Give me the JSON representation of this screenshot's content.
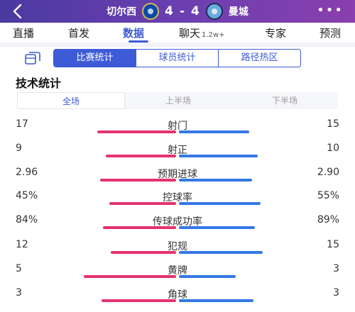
{
  "header": {
    "home_team": "切尔西",
    "away_team": "曼城",
    "home_score": "4",
    "score_sep": "-",
    "away_score": "4",
    "more": "•••"
  },
  "nav": {
    "items": [
      {
        "label": "直播",
        "sup": ""
      },
      {
        "label": "首发",
        "sup": ""
      },
      {
        "label": "数据",
        "sup": ""
      },
      {
        "label": "聊天",
        "sup": "1.2w+"
      },
      {
        "label": "专家",
        "sup": ""
      },
      {
        "label": "预测",
        "sup": ""
      }
    ],
    "active_index": 2
  },
  "sub_tabs": [
    "比赛统计",
    "球员统计",
    "路径热区"
  ],
  "section_title": "技术统计",
  "period_tabs": [
    "全场",
    "上半场",
    "下半场"
  ],
  "colors": {
    "home_bar": "#e5336c",
    "away_bar": "#3578e5",
    "accent": "#3d5bd6"
  },
  "stats": [
    {
      "label": "射门",
      "home": "17",
      "away": "15",
      "home_ratio": 0.53,
      "away_ratio": 0.47
    },
    {
      "label": "射正",
      "home": "9",
      "away": "10",
      "home_ratio": 0.47,
      "away_ratio": 0.53
    },
    {
      "label": "预期进球",
      "home": "2.96",
      "away": "2.90",
      "home_ratio": 0.51,
      "away_ratio": 0.49
    },
    {
      "label": "控球率",
      "home": "45%",
      "away": "55%",
      "home_ratio": 0.45,
      "away_ratio": 0.55
    },
    {
      "label": "传球成功率",
      "home": "84%",
      "away": "89%",
      "home_ratio": 0.49,
      "away_ratio": 0.51
    },
    {
      "label": "犯规",
      "home": "12",
      "away": "15",
      "home_ratio": 0.44,
      "away_ratio": 0.56
    },
    {
      "label": "黄牌",
      "home": "5",
      "away": "3",
      "home_ratio": 0.62,
      "away_ratio": 0.38
    },
    {
      "label": "角球",
      "home": "3",
      "away": "3",
      "home_ratio": 0.5,
      "away_ratio": 0.5
    }
  ]
}
